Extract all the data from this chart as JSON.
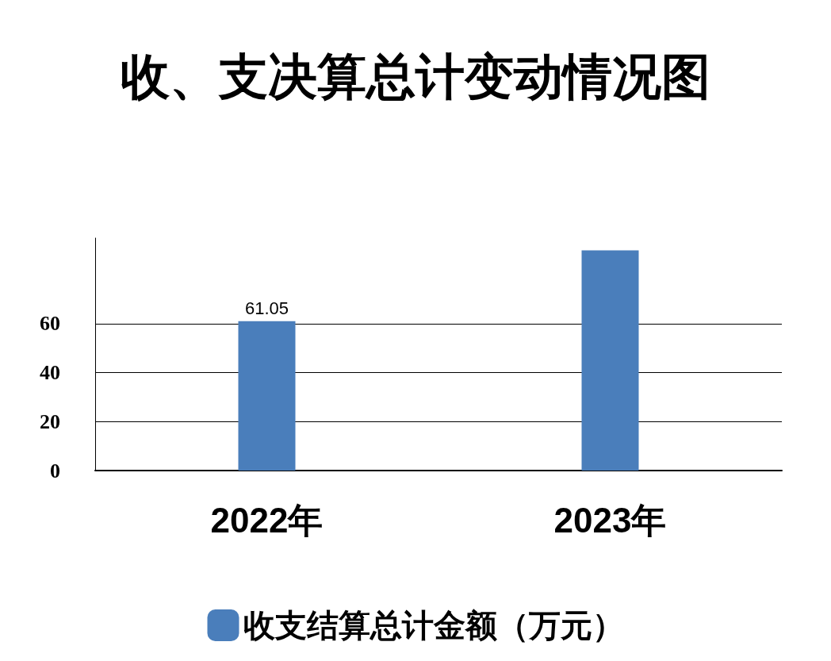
{
  "chart_data": {
    "type": "bar",
    "title": "收、支决算总计变动情况图",
    "categories": [
      "2022年",
      "2023年"
    ],
    "series": [
      {
        "name": "收支结算总计金额（万元）",
        "color": "#4a7ebb",
        "values": [
          61.05,
          90
        ],
        "value_labels": [
          "61.05",
          null
        ]
      }
    ],
    "ylim": [
      0,
      95
    ],
    "yticks": [
      0,
      20,
      40,
      60
    ],
    "grid": "y",
    "legend": "bottom"
  }
}
